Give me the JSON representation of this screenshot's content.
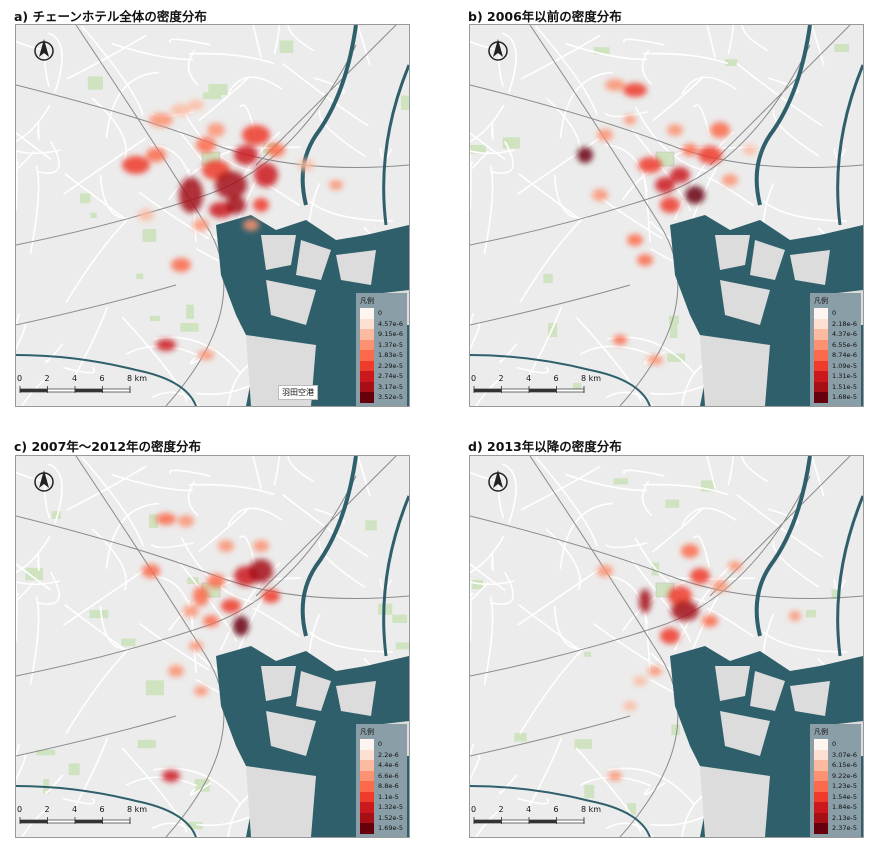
{
  "panels": [
    {
      "title": "a) チェーンホテル全体の密度分布",
      "legend_title": "凡例",
      "legend": [
        "0",
        "4.57e-6",
        "9.15e-6",
        "1.37e-5",
        "1.83e-5",
        "2.29e-5",
        "2.74e-5",
        "3.17e-5",
        "3.52e-5"
      ],
      "airport_label": "羽田空港"
    },
    {
      "title": "b) 2006年以前の密度分布",
      "legend_title": "凡例",
      "legend": [
        "0",
        "2.18e-6",
        "4.37e-6",
        "6.55e-6",
        "8.74e-6",
        "1.09e-5",
        "1.31e-5",
        "1.51e-5",
        "1.68e-5"
      ]
    },
    {
      "title": "c) 2007年～2012年の密度分布",
      "legend_title": "凡例",
      "legend": [
        "0",
        "2.2e-6",
        "4.4e-6",
        "6.6e-6",
        "8.8e-6",
        "1.1e-5",
        "1.32e-5",
        "1.52e-5",
        "1.69e-5"
      ]
    },
    {
      "title": "d) 2013年以降の密度分布",
      "legend_title": "凡例",
      "legend": [
        "0",
        "3.07e-6",
        "6.15e-6",
        "9.22e-6",
        "1.23e-5",
        "1.54e-5",
        "1.84e-5",
        "2.13e-5",
        "2.37e-5"
      ]
    }
  ],
  "scale": {
    "ticks": [
      "0",
      "2",
      "4",
      "6",
      "8 km"
    ]
  },
  "colors": {
    "water": "#2f5f6b",
    "land": "#ececec",
    "road": "#ffffff",
    "rail": "#8b8b8b",
    "park": "#cfe3c0",
    "legend_bg": "#8a9ea8",
    "ramp": [
      "#fff5f0",
      "#fee0d2",
      "#fcbba1",
      "#fc9272",
      "#fb6a4a",
      "#ef3b2c",
      "#cb181d",
      "#a50f15",
      "#67000d"
    ]
  }
}
